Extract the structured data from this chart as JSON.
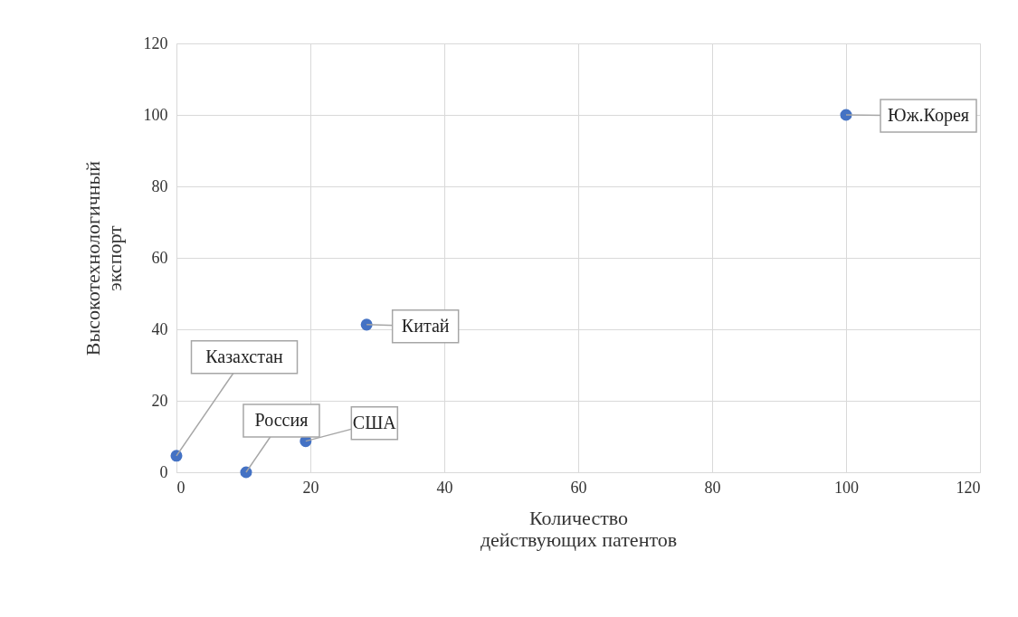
{
  "chart_data": {
    "type": "scatter",
    "xlabel": "Количество\nдействующих патентов",
    "ylabel": "Высокотехнологичный\nэкспорт",
    "x": [
      0,
      10.4,
      19.3,
      28.4,
      100
    ],
    "series": [
      {
        "color": "#4472c4",
        "values": [
          4.6,
          0,
          8.7,
          41.3,
          100
        ]
      }
    ],
    "annotations": [
      {
        "text": "Казахстан",
        "x": 0,
        "y": 4.6
      },
      {
        "text": "Россия",
        "x": 10.4,
        "y": 0
      },
      {
        "text": "США",
        "x": 19.3,
        "y": 8.7
      },
      {
        "text": "Китай",
        "x": 28.4,
        "y": 41.3
      },
      {
        "text": "Юж.Корея",
        "x": 100,
        "y": 100
      }
    ],
    "xlim": [
      0,
      120
    ],
    "xticks": [
      0,
      20,
      40,
      60,
      80,
      100,
      120
    ],
    "ylim": [
      0,
      120
    ],
    "yticks": [
      0,
      20,
      40,
      60,
      80,
      100,
      120
    ],
    "grid": true,
    "marker": "circle"
  }
}
